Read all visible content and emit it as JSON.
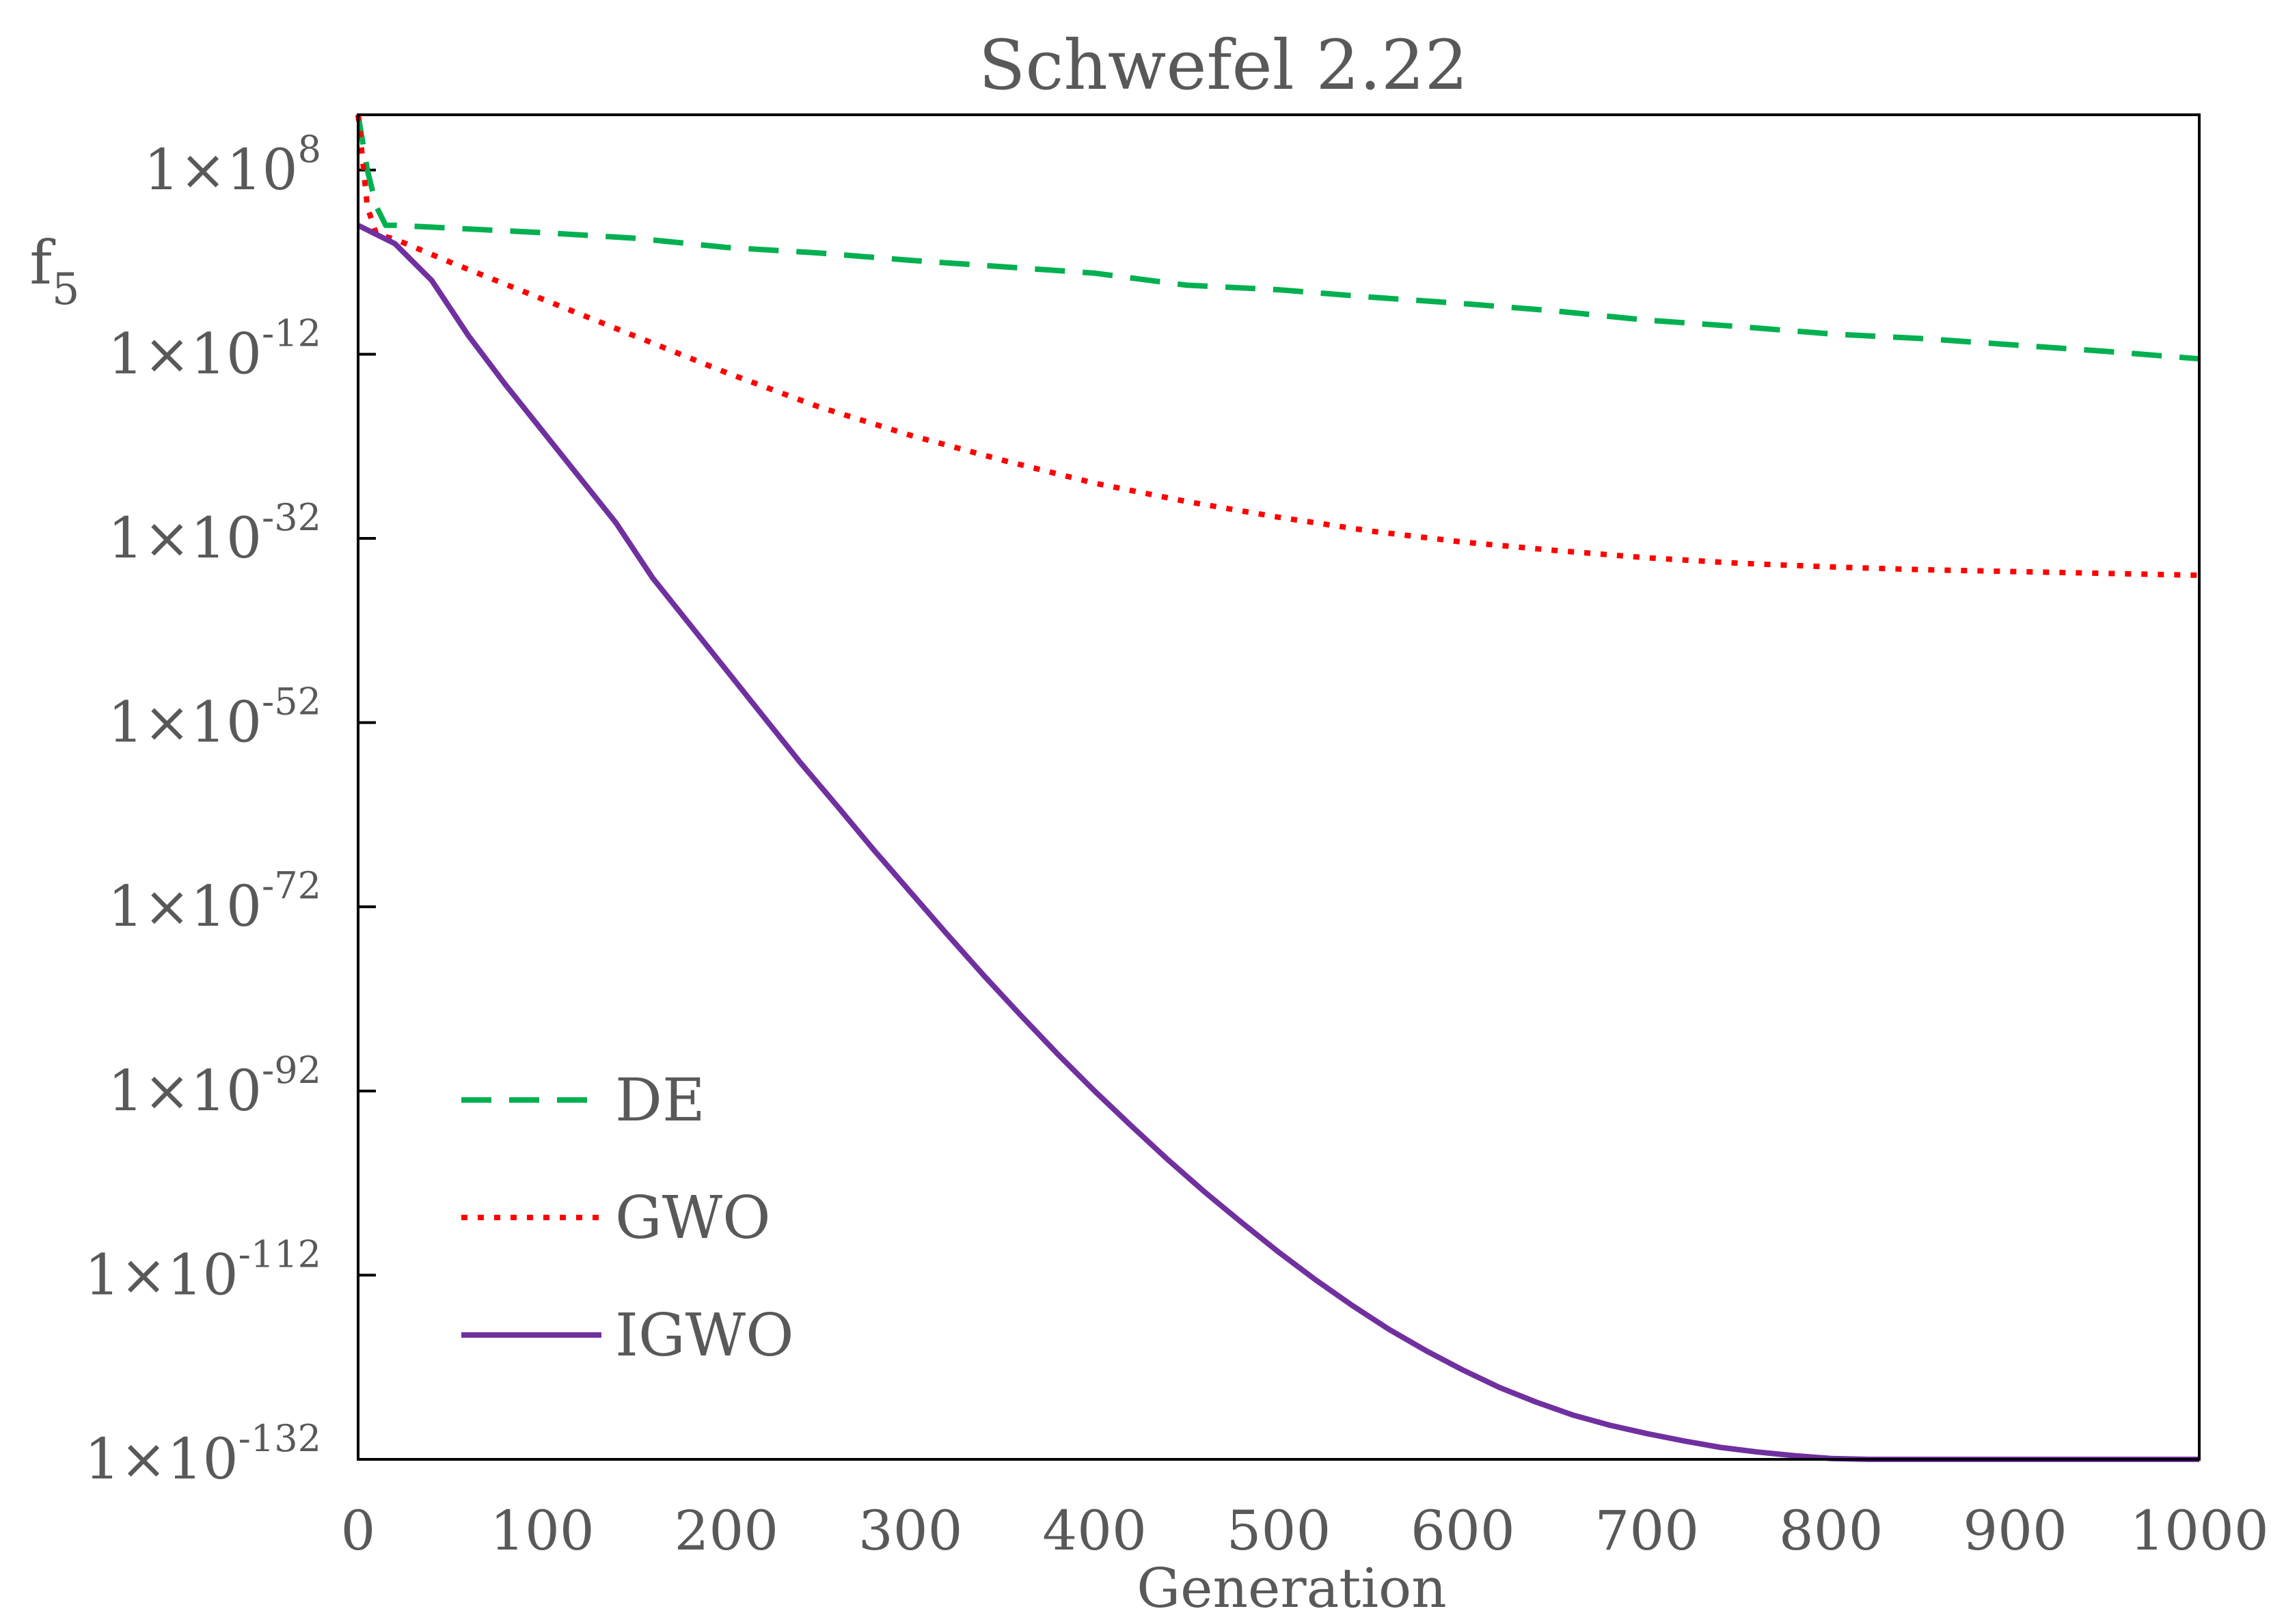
{
  "chart_data": {
    "type": "line",
    "title": "Schwefel 2.22",
    "xlabel": "Generation",
    "ylabel": {
      "base": "f",
      "sub": "5"
    },
    "xlim": [
      0,
      1000
    ],
    "ylim_log10": [
      -132,
      14
    ],
    "x_ticks": [
      "0",
      "100",
      "200",
      "300",
      "400",
      "500",
      "600",
      "700",
      "800",
      "900",
      "1000"
    ],
    "y_ticks": [
      {
        "log10": 8,
        "base": "1×10",
        "exp": "8"
      },
      {
        "log10": -12,
        "base": "1×10",
        "exp": "-12"
      },
      {
        "log10": -32,
        "base": "1×10",
        "exp": "-32"
      },
      {
        "log10": -52,
        "base": "1×10",
        "exp": "-52"
      },
      {
        "log10": -72,
        "base": "1×10",
        "exp": "-72"
      },
      {
        "log10": -92,
        "base": "1×10",
        "exp": "-92"
      },
      {
        "log10": -112,
        "base": "1×10",
        "exp": "-112"
      },
      {
        "log10": -132,
        "base": "1×10",
        "exp": "-132"
      }
    ],
    "legend_position": "bottom-left",
    "series": [
      {
        "name": "DE",
        "style": "dashed",
        "color": "#00b050",
        "x": [
          0,
          5,
          10,
          15,
          20,
          50,
          100,
          150,
          200,
          250,
          300,
          350,
          400,
          450,
          500,
          550,
          600,
          650,
          700,
          750,
          800,
          850,
          900,
          950,
          1000
        ],
        "y_log10": [
          14,
          8,
          4,
          2,
          2,
          1.7,
          1.2,
          0.6,
          -0.4,
          -1,
          -1.8,
          -2.5,
          -3.2,
          -4.5,
          -5,
          -5.8,
          -6.5,
          -7.3,
          -8.3,
          -9,
          -9.8,
          -10.3,
          -11,
          -11.7,
          -12.5
        ]
      },
      {
        "name": "GWO",
        "style": "dotted",
        "color": "#ff0000",
        "x": [
          0,
          5,
          10,
          20,
          50,
          100,
          150,
          200,
          250,
          300,
          350,
          400,
          450,
          500,
          550,
          600,
          650,
          700,
          750,
          800,
          850,
          900,
          950,
          1000
        ],
        "y_log10": [
          14,
          4,
          1,
          0.5,
          -2,
          -6,
          -10,
          -14,
          -17.7,
          -20.8,
          -23.5,
          -26,
          -28,
          -29.7,
          -31.2,
          -32.4,
          -33.3,
          -34.1,
          -34.7,
          -35.1,
          -35.4,
          -35.6,
          -35.8,
          -36
        ]
      },
      {
        "name": "IGWO",
        "style": "solid",
        "color": "#7030a0",
        "x": [
          0,
          20,
          40,
          60,
          80,
          100,
          120,
          140,
          160,
          180,
          200,
          220,
          240,
          260,
          280,
          300,
          320,
          340,
          360,
          380,
          400,
          420,
          440,
          460,
          480,
          500,
          520,
          540,
          560,
          580,
          600,
          620,
          640,
          660,
          680,
          700,
          720,
          740,
          760,
          780,
          800,
          820,
          840,
          860,
          880,
          900,
          920,
          940,
          960,
          980,
          1000
        ],
        "y_log10": [
          2,
          0,
          -4,
          -10,
          -15.3,
          -20.3,
          -25.3,
          -30.3,
          -36.3,
          -41.3,
          -46.3,
          -51.3,
          -56.3,
          -61,
          -65.8,
          -70.4,
          -75,
          -79.5,
          -83.8,
          -88,
          -92,
          -95.8,
          -99.5,
          -103,
          -106.3,
          -109.5,
          -112.5,
          -115.3,
          -117.9,
          -120.2,
          -122.3,
          -124.2,
          -125.8,
          -127.2,
          -128.3,
          -129.2,
          -130,
          -130.7,
          -131.2,
          -131.6,
          -131.9,
          -132,
          -132,
          -132,
          -132,
          -132,
          -132,
          -132,
          -132,
          -132,
          -132
        ]
      }
    ]
  }
}
